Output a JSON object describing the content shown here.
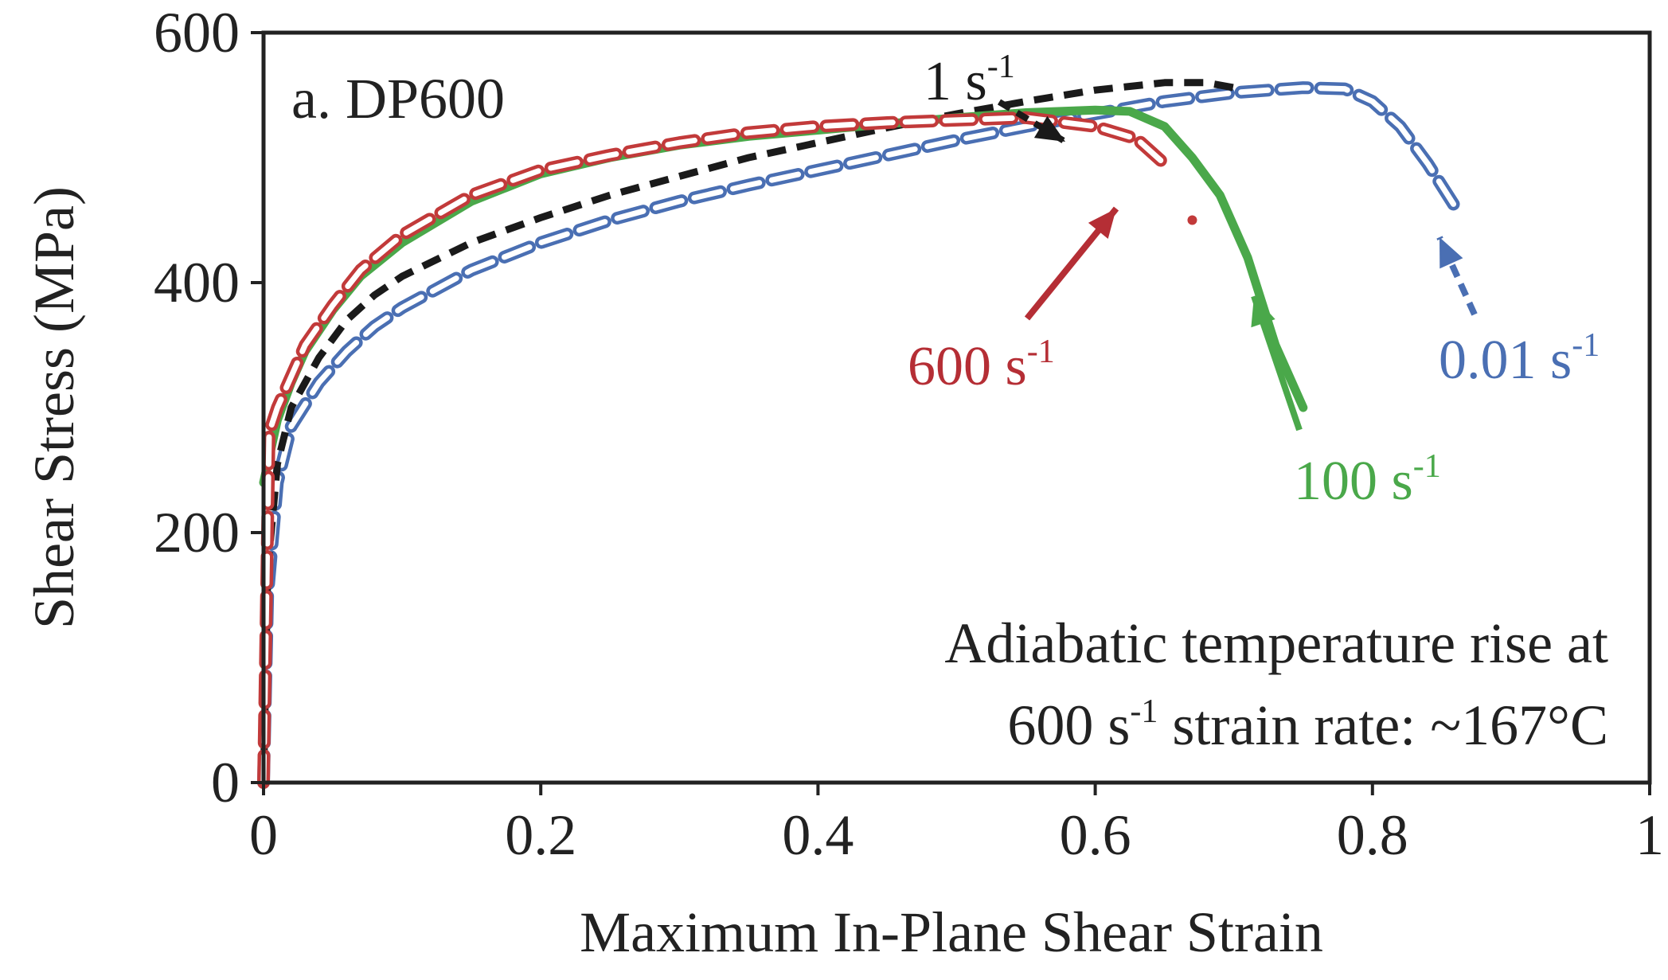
{
  "chart_data": {
    "type": "line",
    "title": "a. DP600",
    "xlabel": "Maximum In-Plane Shear Strain",
    "ylabel": "Shear Stress (MPa)",
    "xlim": [
      0,
      1
    ],
    "ylim": [
      0,
      600
    ],
    "x_ticks": [
      0,
      0.2,
      0.4,
      0.6,
      0.8,
      1
    ],
    "x_tick_labels": [
      "0",
      "0.2",
      "0.4",
      "0.6",
      "0.8",
      "1"
    ],
    "y_ticks": [
      0,
      200,
      400,
      600
    ],
    "y_tick_labels": [
      "0",
      "200",
      "400",
      "600"
    ],
    "grid": false,
    "annotation": {
      "line1": "Adiabatic temperature rise at",
      "line2_prefix": "600 s",
      "line2_exp": "-1",
      "line2_suffix": " strain rate: ~167°C"
    },
    "series": [
      {
        "name": "0.01 s-1",
        "label": "0.01 s",
        "label_exp": "-1",
        "color": "#4a6fb3",
        "style": "hollow-dash",
        "x": [
          0,
          0.003,
          0.01,
          0.02,
          0.04,
          0.06,
          0.08,
          0.1,
          0.15,
          0.2,
          0.25,
          0.3,
          0.35,
          0.4,
          0.45,
          0.5,
          0.55,
          0.6,
          0.65,
          0.7,
          0.75,
          0.78,
          0.8,
          0.82,
          0.84,
          0.86
        ],
        "y": [
          0,
          150,
          240,
          285,
          320,
          345,
          365,
          380,
          410,
          432,
          450,
          465,
          478,
          490,
          502,
          514,
          525,
          535,
          545,
          552,
          556,
          555,
          545,
          525,
          495,
          460
        ]
      },
      {
        "name": "1 s-1",
        "label": "1 s",
        "label_exp": "-1",
        "color": "#1a1a1a",
        "style": "dash",
        "x": [
          0,
          0.003,
          0.01,
          0.02,
          0.04,
          0.06,
          0.08,
          0.1,
          0.15,
          0.2,
          0.25,
          0.3,
          0.35,
          0.4,
          0.45,
          0.5,
          0.55,
          0.6,
          0.65,
          0.68,
          0.7
        ],
        "y": [
          0,
          170,
          255,
          300,
          340,
          370,
          390,
          405,
          432,
          452,
          470,
          485,
          500,
          512,
          524,
          535,
          545,
          554,
          560,
          560,
          556
        ]
      },
      {
        "name": "100 s-1",
        "label": "100 s",
        "label_exp": "-1",
        "color": "#4aa84a",
        "style": "solid",
        "x": [
          0,
          0.005,
          0.01,
          0.02,
          0.03,
          0.05,
          0.07,
          0.1,
          0.15,
          0.2,
          0.25,
          0.3,
          0.35,
          0.4,
          0.45,
          0.5,
          0.55,
          0.6,
          0.625,
          0.65,
          0.67,
          0.69,
          0.71,
          0.73,
          0.75
        ],
        "y": [
          240,
          265,
          290,
          320,
          345,
          378,
          405,
          432,
          465,
          487,
          500,
          510,
          517,
          522,
          527,
          532,
          536,
          538,
          537,
          525,
          500,
          470,
          420,
          350,
          300
        ]
      },
      {
        "name": "600 s-1",
        "label": "600 s",
        "label_exp": "-1",
        "color": "#c23a3a",
        "style": "hollow-dash",
        "x": [
          0,
          0.004,
          0.01,
          0.02,
          0.03,
          0.05,
          0.07,
          0.1,
          0.15,
          0.2,
          0.25,
          0.3,
          0.35,
          0.4,
          0.45,
          0.5,
          0.55,
          0.6,
          0.63,
          0.65
        ],
        "y": [
          0,
          280,
          300,
          325,
          350,
          382,
          410,
          438,
          470,
          490,
          502,
          512,
          520,
          525,
          528,
          530,
          532,
          525,
          515,
          495
        ]
      }
    ],
    "stray_point": {
      "x": 0.67,
      "y": 450
    }
  }
}
